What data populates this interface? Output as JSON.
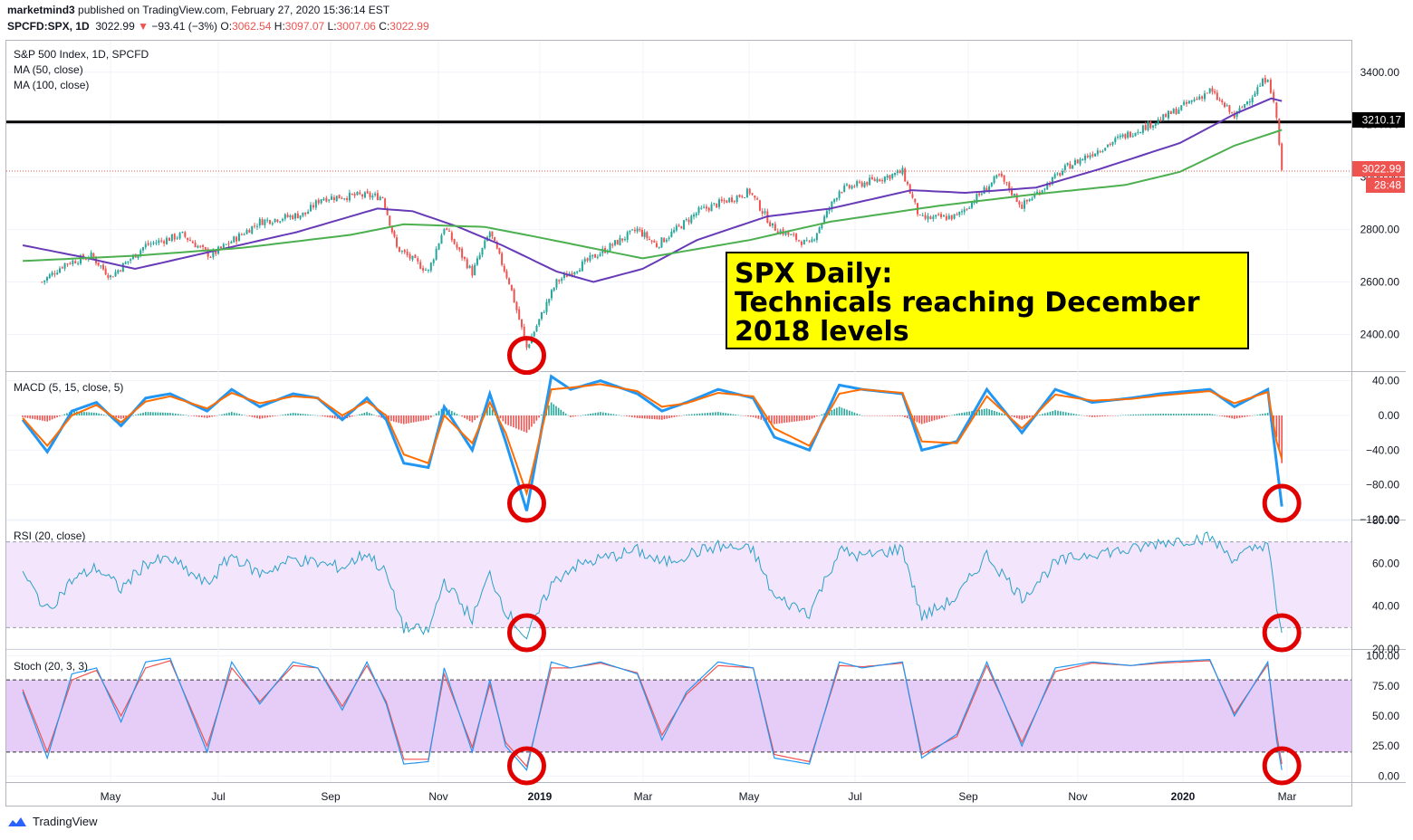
{
  "header": {
    "publisher": "marketmind3",
    "published_text": "published on TradingView.com, February 27, 2020 15:36:14 EST",
    "symbol": "SPCFD:SPX, 1D",
    "last": "3022.99",
    "change": "−93.41 (−3%)",
    "o_label": "O:",
    "o_value": "3062.54",
    "h_label": "H:",
    "h_value": "3097.07",
    "l_label": "L:",
    "l_value": "3007.06",
    "c_label": "C:",
    "c_value": "3022.99"
  },
  "annotation": {
    "line1": "SPX Daily:",
    "line2": "Technicals reaching December",
    "line3": "2018 levels"
  },
  "footer": {
    "brand": "TradingView"
  },
  "colors": {
    "up": "#26a69a",
    "down": "#ef5350",
    "ma50": "#673ab7",
    "ma100": "#4caf50",
    "macd": "#2196f3",
    "signal": "#ff6d00",
    "rsi": "#2aa1c8",
    "stochK": "#2196f3",
    "stochD": "#ef5350",
    "circle": "#e00000",
    "hline": "#000000"
  },
  "chart_data": [
    {
      "type": "candlestick",
      "title": "S&P 500 Index, 1D, SPCFD",
      "legend": [
        "MA (50, close)",
        "MA (100, close)"
      ],
      "ylim": [
        2260,
        3520
      ],
      "yticks": [
        2400,
        2600,
        2800,
        3000,
        3200,
        3400
      ],
      "ytick_labels": [
        "2400.00",
        "2600.00",
        "2800.00",
        "3000.00",
        "3200.00",
        "3400.00"
      ],
      "x_labels": [
        "May",
        "Jul",
        "Sep",
        "Nov",
        "2019",
        "Mar",
        "May",
        "Jul",
        "Sep",
        "Nov",
        "2020",
        "Mar"
      ],
      "x_label_pos": [
        122,
        241,
        365,
        484,
        596,
        710,
        827,
        944,
        1069,
        1190,
        1306,
        1421
      ],
      "close_path": {
        "dates": [
          "2018-03-23",
          "2018-04-05",
          "2018-04-20",
          "2018-05-01",
          "2018-05-21",
          "2018-06-11",
          "2018-06-27",
          "2018-07-25",
          "2018-08-20",
          "2018-08-29",
          "2018-09-20",
          "2018-10-03",
          "2018-10-11",
          "2018-10-29",
          "2018-11-07",
          "2018-11-23",
          "2018-12-03",
          "2018-12-14",
          "2018-12-24",
          "2019-01-10",
          "2019-02-01",
          "2019-02-25",
          "2019-03-08",
          "2019-04-01",
          "2019-04-30",
          "2019-05-13",
          "2019-06-03",
          "2019-06-20",
          "2019-07-26",
          "2019-08-05",
          "2019-08-26",
          "2019-09-19",
          "2019-10-02",
          "2019-10-28",
          "2019-11-27",
          "2019-12-20",
          "2020-01-17",
          "2020-01-31",
          "2020-02-19",
          "2020-02-24",
          "2020-02-27"
        ],
        "close": [
          2600,
          2670,
          2700,
          2620,
          2740,
          2780,
          2700,
          2830,
          2860,
          2920,
          2930,
          2925,
          2730,
          2640,
          2810,
          2635,
          2790,
          2600,
          2350,
          2600,
          2700,
          2800,
          2740,
          2870,
          2945,
          2810,
          2740,
          2950,
          3020,
          2840,
          2850,
          3005,
          2890,
          3040,
          3150,
          3220,
          3330,
          3230,
          3386,
          3225,
          3022.99
        ]
      },
      "series": [
        {
          "name": "MA (50, close)",
          "dates": [
            "2018-03-12",
            "2018-04-15",
            "2018-05-15",
            "2018-06-30",
            "2018-08-15",
            "2018-09-30",
            "2018-10-20",
            "2018-11-15",
            "2018-12-10",
            "2019-01-10",
            "2019-01-31",
            "2019-02-28",
            "2019-03-31",
            "2019-05-10",
            "2019-06-15",
            "2019-07-31",
            "2019-08-31",
            "2019-10-10",
            "2019-11-15",
            "2019-12-31",
            "2020-01-31",
            "2020-02-21",
            "2020-02-27"
          ],
          "values": [
            2740,
            2695,
            2650,
            2720,
            2790,
            2880,
            2870,
            2810,
            2740,
            2640,
            2600,
            2650,
            2760,
            2850,
            2880,
            2950,
            2940,
            2960,
            3030,
            3130,
            3240,
            3300,
            3290
          ]
        },
        {
          "name": "MA (100, close)",
          "dates": [
            "2018-03-12",
            "2018-05-15",
            "2018-07-15",
            "2018-09-15",
            "2018-10-15",
            "2018-11-30",
            "2018-12-31",
            "2019-02-28",
            "2019-04-30",
            "2019-06-15",
            "2019-08-15",
            "2019-10-10",
            "2019-11-30",
            "2019-12-31",
            "2020-01-31",
            "2020-02-27"
          ],
          "values": [
            2680,
            2700,
            2730,
            2780,
            2820,
            2810,
            2770,
            2690,
            2760,
            2830,
            2890,
            2935,
            2970,
            3020,
            3120,
            3180
          ]
        }
      ],
      "horizontal_line": {
        "value": 3210.17,
        "label": "3210.17"
      },
      "last_price": {
        "value": 3022.99,
        "label": "3022.99",
        "countdown": "28:48"
      },
      "circles": [
        "2018-12-24"
      ]
    },
    {
      "type": "line",
      "title": "MACD (5, 15, close, 5)",
      "ylim": [
        -120,
        50
      ],
      "yticks": [
        -120,
        -80,
        -40,
        0,
        40
      ],
      "ytick_labels": [
        "−120.00",
        "−80.00",
        "−40.00",
        "0.00",
        "40.00"
      ],
      "series": [
        {
          "name": "MACD",
          "dates": [
            "2018-03-12",
            "2018-03-26",
            "2018-04-09",
            "2018-04-23",
            "2018-05-07",
            "2018-05-21",
            "2018-06-04",
            "2018-06-25",
            "2018-07-09",
            "2018-07-25",
            "2018-08-13",
            "2018-08-27",
            "2018-09-10",
            "2018-09-24",
            "2018-10-05",
            "2018-10-15",
            "2018-10-29",
            "2018-11-07",
            "2018-11-23",
            "2018-12-03",
            "2018-12-12",
            "2018-12-24",
            "2019-01-07",
            "2019-01-18",
            "2019-02-04",
            "2019-02-25",
            "2019-03-11",
            "2019-03-25",
            "2019-04-12",
            "2019-05-02",
            "2019-05-14",
            "2019-06-03",
            "2019-06-20",
            "2019-07-03",
            "2019-07-26",
            "2019-08-06",
            "2019-08-26",
            "2019-09-12",
            "2019-10-02",
            "2019-10-21",
            "2019-11-11",
            "2019-12-03",
            "2019-12-20",
            "2020-01-17",
            "2020-01-31",
            "2020-02-19",
            "2020-02-24",
            "2020-02-27"
          ],
          "values": [
            -5,
            -42,
            5,
            15,
            -12,
            20,
            25,
            5,
            30,
            10,
            25,
            20,
            -5,
            20,
            -5,
            -55,
            -60,
            10,
            -40,
            25,
            -30,
            -110,
            45,
            30,
            40,
            25,
            5,
            15,
            30,
            20,
            -25,
            -40,
            35,
            30,
            25,
            -40,
            -30,
            30,
            -20,
            30,
            15,
            20,
            25,
            30,
            10,
            30,
            -55,
            -105
          ]
        },
        {
          "name": "Signal",
          "dates": [
            "2018-03-12",
            "2018-03-26",
            "2018-04-09",
            "2018-04-23",
            "2018-05-07",
            "2018-05-21",
            "2018-06-04",
            "2018-06-25",
            "2018-07-09",
            "2018-07-25",
            "2018-08-13",
            "2018-08-27",
            "2018-09-10",
            "2018-09-24",
            "2018-10-05",
            "2018-10-15",
            "2018-10-29",
            "2018-11-07",
            "2018-11-23",
            "2018-12-03",
            "2018-12-12",
            "2018-12-24",
            "2019-01-07",
            "2019-01-18",
            "2019-02-04",
            "2019-02-25",
            "2019-03-11",
            "2019-03-25",
            "2019-04-12",
            "2019-05-02",
            "2019-05-14",
            "2019-06-03",
            "2019-06-20",
            "2019-07-03",
            "2019-07-26",
            "2019-08-06",
            "2019-08-26",
            "2019-09-12",
            "2019-10-02",
            "2019-10-21",
            "2019-11-11",
            "2019-12-03",
            "2019-12-20",
            "2020-01-17",
            "2020-01-31",
            "2020-02-19",
            "2020-02-24",
            "2020-02-27"
          ],
          "values": [
            -3,
            -35,
            0,
            12,
            -8,
            16,
            22,
            8,
            26,
            14,
            22,
            20,
            0,
            16,
            0,
            -45,
            -55,
            0,
            -32,
            15,
            -20,
            -90,
            30,
            32,
            36,
            28,
            10,
            14,
            26,
            22,
            -15,
            -35,
            25,
            30,
            26,
            -30,
            -32,
            22,
            -15,
            24,
            17,
            19,
            23,
            28,
            14,
            27,
            -30,
            -50
          ]
        }
      ],
      "circles": [
        "2018-12-24",
        "2020-02-27"
      ]
    },
    {
      "type": "line",
      "title": "RSI (20, close)",
      "ylim": [
        20,
        80
      ],
      "yticks": [
        20,
        40,
        60,
        80
      ],
      "ytick_labels": [
        "20.00",
        "40.00",
        "60.00",
        "80.00"
      ],
      "band": [
        30,
        70
      ],
      "series": [
        {
          "name": "RSI",
          "dates": [
            "2018-03-12",
            "2018-03-26",
            "2018-04-09",
            "2018-04-23",
            "2018-05-07",
            "2018-05-21",
            "2018-06-04",
            "2018-06-25",
            "2018-07-09",
            "2018-07-25",
            "2018-08-13",
            "2018-08-27",
            "2018-09-10",
            "2018-09-24",
            "2018-10-05",
            "2018-10-15",
            "2018-10-29",
            "2018-11-07",
            "2018-11-23",
            "2018-12-03",
            "2018-12-12",
            "2018-12-24",
            "2019-01-07",
            "2019-01-18",
            "2019-02-04",
            "2019-02-25",
            "2019-03-11",
            "2019-03-25",
            "2019-04-12",
            "2019-05-02",
            "2019-05-14",
            "2019-06-03",
            "2019-06-20",
            "2019-07-03",
            "2019-07-26",
            "2019-08-06",
            "2019-08-26",
            "2019-09-12",
            "2019-10-02",
            "2019-10-21",
            "2019-11-11",
            "2019-12-03",
            "2019-12-20",
            "2020-01-17",
            "2020-01-31",
            "2020-02-19",
            "2020-02-24",
            "2020-02-27"
          ],
          "values": [
            55,
            38,
            52,
            58,
            48,
            60,
            62,
            50,
            64,
            55,
            62,
            60,
            58,
            65,
            55,
            30,
            28,
            52,
            34,
            55,
            38,
            25,
            50,
            58,
            62,
            66,
            60,
            64,
            68,
            66,
            44,
            37,
            66,
            63,
            67,
            35,
            44,
            64,
            44,
            60,
            65,
            66,
            70,
            72,
            62,
            70,
            38,
            26
          ]
        }
      ],
      "circles": [
        "2018-12-24",
        "2020-02-27"
      ]
    },
    {
      "type": "line",
      "title": "Stoch (20, 3, 3)",
      "ylim": [
        -5,
        105
      ],
      "yticks": [
        0,
        25,
        50,
        75,
        100
      ],
      "ytick_labels": [
        "0.00",
        "25.00",
        "50.00",
        "75.00",
        "100.00"
      ],
      "band": [
        20,
        80
      ],
      "series": [
        {
          "name": "%K",
          "dates": [
            "2018-03-12",
            "2018-03-26",
            "2018-04-09",
            "2018-04-23",
            "2018-05-07",
            "2018-05-21",
            "2018-06-04",
            "2018-06-25",
            "2018-07-09",
            "2018-07-25",
            "2018-08-13",
            "2018-08-27",
            "2018-09-10",
            "2018-09-24",
            "2018-10-05",
            "2018-10-15",
            "2018-10-29",
            "2018-11-07",
            "2018-11-23",
            "2018-12-03",
            "2018-12-12",
            "2018-12-24",
            "2019-01-07",
            "2019-01-18",
            "2019-02-04",
            "2019-02-25",
            "2019-03-11",
            "2019-03-25",
            "2019-04-12",
            "2019-05-02",
            "2019-05-14",
            "2019-06-03",
            "2019-06-20",
            "2019-07-03",
            "2019-07-26",
            "2019-08-06",
            "2019-08-26",
            "2019-09-12",
            "2019-10-02",
            "2019-10-21",
            "2019-11-11",
            "2019-12-03",
            "2019-12-20",
            "2020-01-17",
            "2020-01-31",
            "2020-02-19",
            "2020-02-24",
            "2020-02-27"
          ],
          "values": [
            70,
            15,
            85,
            90,
            45,
            95,
            98,
            20,
            95,
            60,
            95,
            90,
            55,
            95,
            60,
            10,
            12,
            90,
            20,
            80,
            25,
            5,
            95,
            90,
            95,
            85,
            30,
            70,
            95,
            90,
            15,
            10,
            95,
            90,
            95,
            15,
            35,
            95,
            25,
            90,
            95,
            92,
            95,
            97,
            50,
            95,
            30,
            5
          ]
        },
        {
          "name": "%D",
          "dates": [
            "2018-03-12",
            "2018-03-26",
            "2018-04-09",
            "2018-04-23",
            "2018-05-07",
            "2018-05-21",
            "2018-06-04",
            "2018-06-25",
            "2018-07-09",
            "2018-07-25",
            "2018-08-13",
            "2018-08-27",
            "2018-09-10",
            "2018-09-24",
            "2018-10-05",
            "2018-10-15",
            "2018-10-29",
            "2018-11-07",
            "2018-11-23",
            "2018-12-03",
            "2018-12-12",
            "2018-12-24",
            "2019-01-07",
            "2019-01-18",
            "2019-02-04",
            "2019-02-25",
            "2019-03-11",
            "2019-03-25",
            "2019-04-12",
            "2019-05-02",
            "2019-05-14",
            "2019-06-03",
            "2019-06-20",
            "2019-07-03",
            "2019-07-26",
            "2019-08-06",
            "2019-08-26",
            "2019-09-12",
            "2019-10-02",
            "2019-10-21",
            "2019-11-11",
            "2019-12-03",
            "2019-12-20",
            "2020-01-17",
            "2020-01-31",
            "2020-02-19",
            "2020-02-24",
            "2020-02-27"
          ],
          "values": [
            72,
            20,
            80,
            88,
            50,
            90,
            96,
            25,
            90,
            62,
            92,
            90,
            58,
            92,
            62,
            14,
            14,
            85,
            24,
            76,
            28,
            8,
            90,
            90,
            94,
            86,
            34,
            68,
            92,
            90,
            18,
            12,
            92,
            91,
            94,
            18,
            33,
            92,
            28,
            87,
            94,
            92,
            94,
            96,
            52,
            93,
            35,
            10
          ]
        }
      ],
      "circles": [
        "2018-12-24",
        "2020-02-27"
      ]
    }
  ]
}
